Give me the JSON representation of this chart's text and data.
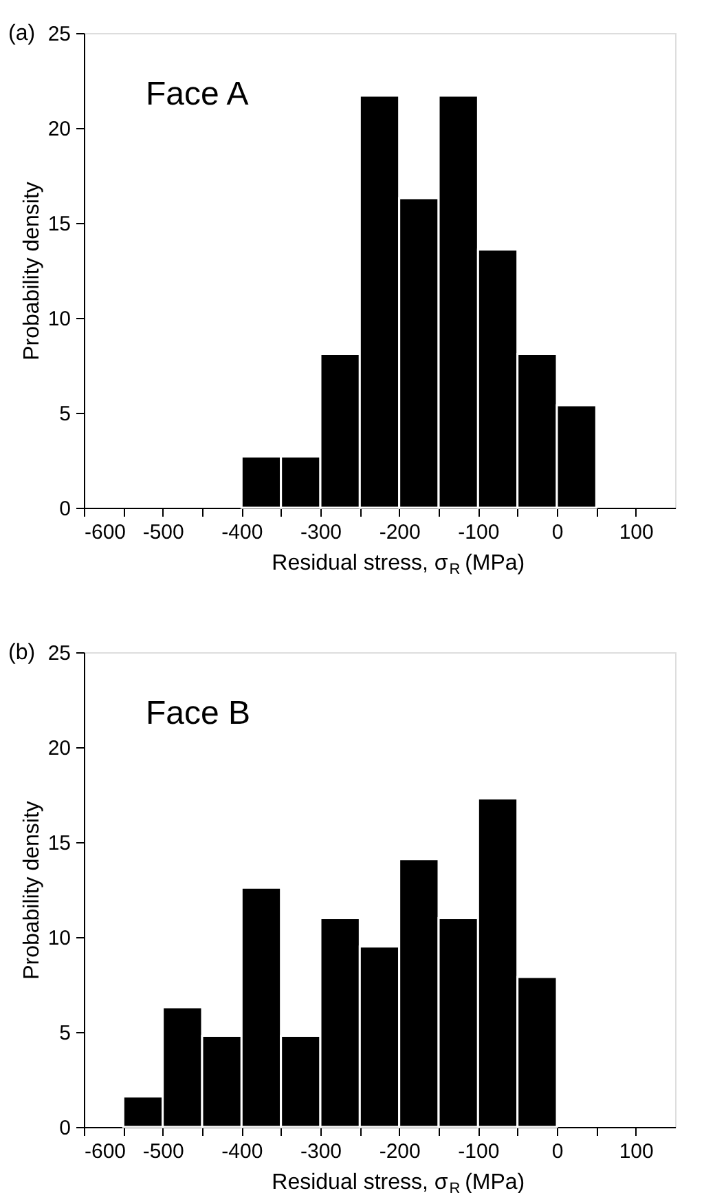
{
  "chart_data": [
    {
      "type": "histogram",
      "annotations": [
        "(a)",
        "Face A"
      ],
      "xlabel": "Residual stress, σ$_{R}$ (MPa)",
      "ylabel": "Probability density",
      "bins": [
        -400,
        -350,
        -300,
        -250,
        -200,
        -150,
        -100,
        -50,
        0,
        50
      ],
      "values": [
        2.7,
        2.7,
        8.1,
        21.7,
        16.3,
        21.7,
        13.6,
        8.1,
        5.4
      ],
      "color": "#000000",
      "xlim": [
        -600,
        150
      ],
      "xticks": [
        -600,
        {
          "value": -550,
          "label": null
        },
        -500,
        {
          "value": -450,
          "label": null
        },
        -400,
        {
          "value": -350,
          "label": null
        },
        -300,
        {
          "value": -250,
          "label": null
        },
        -200,
        {
          "value": -150,
          "label": null
        },
        -100,
        {
          "value": -50,
          "label": null
        },
        0,
        {
          "value": 50,
          "label": null
        },
        100
      ],
      "ylim": [
        0,
        25
      ],
      "yticks": [
        0,
        5,
        10,
        15,
        20,
        25
      ],
      "grid": false
    },
    {
      "type": "histogram",
      "annotations": [
        "(b)",
        "Face B"
      ],
      "xlabel": "Residual stress, σ$_{R}$ (MPa)",
      "ylabel": "Probability density",
      "bins": [
        -550,
        -500,
        -450,
        -400,
        -350,
        -300,
        -250,
        -200,
        -150,
        -100,
        -50,
        0
      ],
      "values": [
        1.6,
        6.3,
        4.8,
        12.6,
        4.8,
        11.0,
        9.5,
        14.1,
        11.0,
        17.3,
        7.9
      ],
      "color": "#000000",
      "xlim": [
        -600,
        150
      ],
      "xticks": [
        -600,
        {
          "value": -550,
          "label": null
        },
        -500,
        {
          "value": -450,
          "label": null
        },
        -400,
        {
          "value": -350,
          "label": null
        },
        -300,
        {
          "value": -250,
          "label": null
        },
        -200,
        {
          "value": -150,
          "label": null
        },
        -100,
        {
          "value": -50,
          "label": null
        },
        0,
        {
          "value": 50,
          "label": null
        },
        100
      ],
      "ylim": [
        0,
        25
      ],
      "yticks": [
        0,
        5,
        10,
        15,
        20,
        25
      ],
      "grid": false
    }
  ]
}
